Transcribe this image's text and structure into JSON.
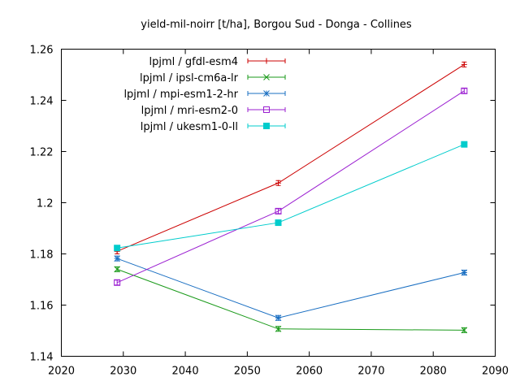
{
  "chart_data": {
    "type": "line",
    "title": "yield-mil-noirr [t/ha], Borgou Sud - Donga - Collines",
    "xlabel": "",
    "ylabel": "",
    "xlim": [
      2020,
      2090
    ],
    "ylim": [
      1.14,
      1.26
    ],
    "xticks": [
      "2020",
      "2030",
      "2040",
      "2050",
      "2060",
      "2070",
      "2080",
      "2090"
    ],
    "yticks": [
      "1.14",
      "1.16",
      "1.18",
      "1.2",
      "1.22",
      "1.24",
      "1.26"
    ],
    "legend_position": "top-left",
    "grid": false,
    "x": [
      2029,
      2055,
      2085
    ],
    "series": [
      {
        "name": "lpjml / gfdl-esm4",
        "color": "#cc0000",
        "marker": "plus",
        "values": [
          1.181,
          1.2077,
          1.254
        ]
      },
      {
        "name": "lpjml / ipsl-cm6a-lr",
        "color": "#1a9a1a",
        "marker": "cross",
        "values": [
          1.174,
          1.1507,
          1.1502
        ]
      },
      {
        "name": "lpjml / mpi-esm1-2-hr",
        "color": "#1a6fc2",
        "marker": "star",
        "values": [
          1.1782,
          1.155,
          1.1727
        ]
      },
      {
        "name": "lpjml / mri-esm2-0",
        "color": "#9b1fd1",
        "marker": "square-open",
        "values": [
          1.1688,
          1.1967,
          1.2437
        ]
      },
      {
        "name": "lpjml / ukesm1-0-ll",
        "color": "#00cccc",
        "marker": "square-filled",
        "values": [
          1.1823,
          1.1922,
          1.2228
        ]
      }
    ]
  }
}
